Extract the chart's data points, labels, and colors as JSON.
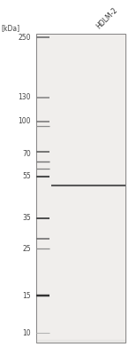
{
  "title": "",
  "kdal_label": "[kDa]",
  "column_label": "HDLM-2",
  "background_color": "#ffffff",
  "gel_background": "#f0eeec",
  "marker_bands": [
    {
      "kda": 250,
      "darkness": 0.55,
      "thickness": 2.5
    },
    {
      "kda": 130,
      "darkness": 0.5,
      "thickness": 2.2
    },
    {
      "kda": 100,
      "darkness": 0.55,
      "thickness": 2.2
    },
    {
      "kda": 95,
      "darkness": 0.45,
      "thickness": 1.8
    },
    {
      "kda": 72,
      "darkness": 0.6,
      "thickness": 2.5
    },
    {
      "kda": 65,
      "darkness": 0.55,
      "thickness": 2.0
    },
    {
      "kda": 60,
      "darkness": 0.5,
      "thickness": 1.8
    },
    {
      "kda": 55,
      "darkness": 0.7,
      "thickness": 3.0
    },
    {
      "kda": 35,
      "darkness": 0.7,
      "thickness": 2.8
    },
    {
      "kda": 28,
      "darkness": 0.6,
      "thickness": 2.2
    },
    {
      "kda": 25,
      "darkness": 0.45,
      "thickness": 1.8
    },
    {
      "kda": 15,
      "darkness": 0.8,
      "thickness": 3.5
    },
    {
      "kda": 10,
      "darkness": 0.3,
      "thickness": 1.5
    }
  ],
  "sample_band": {
    "kda": 50,
    "darkness": 0.65,
    "thickness": 3.0
  },
  "kda_labels": [
    250,
    130,
    100,
    70,
    55,
    35,
    25,
    15,
    10
  ],
  "ylim_kda_log_min": 9,
  "ylim_kda_log_max": 260,
  "label_color": "#444444",
  "font_size_label": 5.5,
  "font_size_kda": 5.5
}
